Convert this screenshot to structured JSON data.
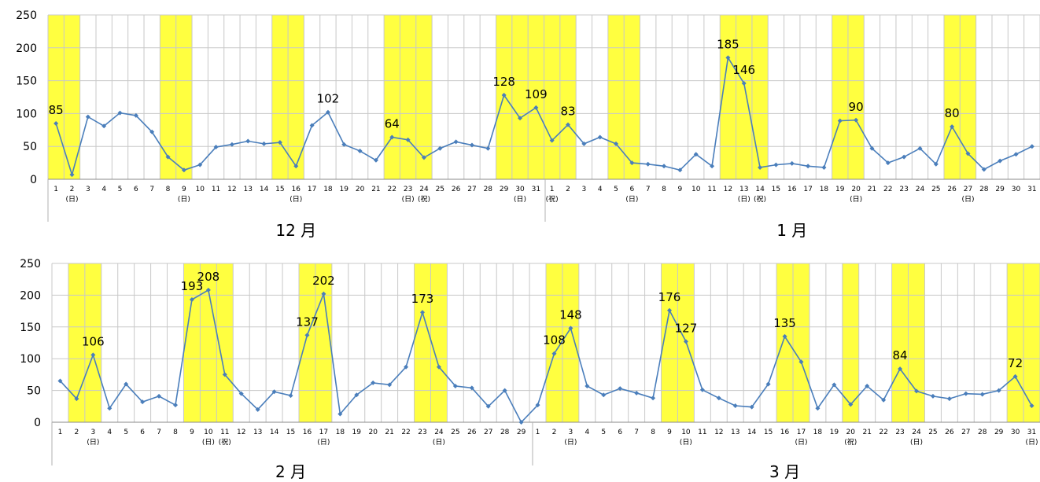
{
  "chart_data": [
    {
      "type": "line",
      "y_ticks": [
        0,
        50,
        100,
        150,
        200,
        250
      ],
      "ylim": [
        0,
        250
      ],
      "line_color": "#4a7ebb",
      "highlight_color": "#ffff40",
      "grid": true,
      "months": [
        {
          "label": "12 月",
          "days": 31,
          "values": [
            85,
            7,
            95,
            81,
            101,
            97,
            72,
            34,
            14,
            22,
            49,
            53,
            58,
            54,
            56,
            20,
            82,
            102,
            53,
            43,
            29,
            64,
            60,
            33,
            47,
            57,
            52,
            47,
            128,
            93,
            109
          ],
          "highlight_days": [
            1,
            2,
            8,
            9,
            15,
            16,
            22,
            23,
            24,
            29,
            30,
            31
          ],
          "sub_labels": [
            {
              "day": 2,
              "text": "(日)"
            },
            {
              "day": 9,
              "text": "(日)"
            },
            {
              "day": 16,
              "text": "(日)"
            },
            {
              "day": 23,
              "text": "(日)"
            },
            {
              "day": 24,
              "text": "(祝)"
            },
            {
              "day": 30,
              "text": "(日)"
            }
          ],
          "data_labels": [
            {
              "day": 1,
              "text": "85"
            },
            {
              "day": 18,
              "text": "102"
            },
            {
              "day": 22,
              "text": "64"
            },
            {
              "day": 29,
              "text": "128"
            },
            {
              "day": 31,
              "text": "109"
            }
          ]
        },
        {
          "label": "1 月",
          "days": 31,
          "values": [
            59,
            83,
            54,
            64,
            54,
            25,
            23,
            20,
            14,
            38,
            20,
            185,
            146,
            18,
            22,
            24,
            20,
            18,
            89,
            90,
            47,
            25,
            34,
            47,
            23,
            80,
            39,
            15,
            28,
            38,
            50
          ],
          "highlight_days": [
            1,
            2,
            5,
            6,
            12,
            13,
            14,
            19,
            20,
            26,
            27
          ],
          "sub_labels": [
            {
              "day": 1,
              "text": "(祝)"
            },
            {
              "day": 6,
              "text": "(日)"
            },
            {
              "day": 13,
              "text": "(日)"
            },
            {
              "day": 14,
              "text": "(祝)"
            },
            {
              "day": 20,
              "text": "(日)"
            },
            {
              "day": 27,
              "text": "(日)"
            }
          ],
          "data_labels": [
            {
              "day": 2,
              "text": "83"
            },
            {
              "day": 12,
              "text": "185"
            },
            {
              "day": 13,
              "text": "146"
            },
            {
              "day": 20,
              "text": "90"
            },
            {
              "day": 26,
              "text": "80"
            }
          ]
        }
      ]
    },
    {
      "type": "line",
      "y_ticks": [
        0,
        50,
        100,
        150,
        200,
        250
      ],
      "ylim": [
        0,
        250
      ],
      "line_color": "#4a7ebb",
      "highlight_color": "#ffff40",
      "grid": true,
      "months": [
        {
          "label": "2 月",
          "days": 29,
          "values": [
            65,
            37,
            106,
            22,
            60,
            32,
            41,
            27,
            193,
            208,
            75,
            45,
            20,
            48,
            42,
            137,
            202,
            13,
            43,
            62,
            59,
            87,
            173,
            87,
            57,
            54,
            25,
            50,
            0
          ],
          "highlight_days": [
            2,
            3,
            9,
            10,
            11,
            16,
            17,
            23,
            24
          ],
          "sub_labels": [
            {
              "day": 3,
              "text": "(日)"
            },
            {
              "day": 10,
              "text": "(日)"
            },
            {
              "day": 11,
              "text": "(祝)"
            },
            {
              "day": 17,
              "text": "(日)"
            },
            {
              "day": 24,
              "text": "(日)"
            }
          ],
          "data_labels": [
            {
              "day": 3,
              "text": "106"
            },
            {
              "day": 9,
              "text": "193"
            },
            {
              "day": 10,
              "text": "208"
            },
            {
              "day": 16,
              "text": "137"
            },
            {
              "day": 17,
              "text": "202"
            },
            {
              "day": 23,
              "text": "173"
            }
          ]
        },
        {
          "label": "3 月",
          "days": 31,
          "values": [
            27,
            108,
            148,
            57,
            43,
            53,
            46,
            38,
            176,
            127,
            51,
            38,
            26,
            24,
            60,
            135,
            95,
            22,
            59,
            28,
            57,
            35,
            84,
            49,
            41,
            37,
            45,
            44,
            50,
            72,
            26
          ],
          "highlight_days": [
            2,
            3,
            9,
            10,
            16,
            17,
            20,
            23,
            24,
            30,
            31
          ],
          "sub_labels": [
            {
              "day": 3,
              "text": "(日)"
            },
            {
              "day": 10,
              "text": "(日)"
            },
            {
              "day": 17,
              "text": "(日)"
            },
            {
              "day": 20,
              "text": "(祝)"
            },
            {
              "day": 24,
              "text": "(日)"
            },
            {
              "day": 31,
              "text": "(日)"
            }
          ],
          "data_labels": [
            {
              "day": 2,
              "text": "108"
            },
            {
              "day": 3,
              "text": "148"
            },
            {
              "day": 9,
              "text": "176"
            },
            {
              "day": 10,
              "text": "127"
            },
            {
              "day": 16,
              "text": "135"
            },
            {
              "day": 23,
              "text": "84"
            },
            {
              "day": 30,
              "text": "72"
            }
          ]
        }
      ]
    }
  ]
}
